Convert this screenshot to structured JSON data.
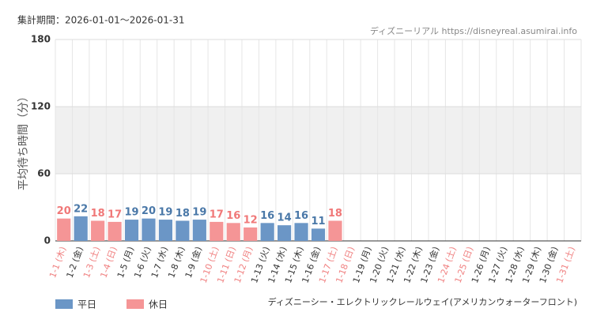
{
  "chart_data": {
    "type": "bar",
    "period": "集計期間：2026-01-01～2026-01-31",
    "credit": "ディズニーリアル https://disneyreal.asumirai.info",
    "ylabel": "平均待ち時間（分）",
    "caption": "ディズニーシー・エレクトリックレールウェイ(アメリカンウォーターフロント)",
    "categories": [
      "1-1 (木)",
      "1-2 (金)",
      "1-3 (土)",
      "1-4 (日)",
      "1-5 (月)",
      "1-6 (火)",
      "1-7 (水)",
      "1-8 (木)",
      "1-9 (金)",
      "1-10 (土)",
      "1-11 (日)",
      "1-12 (月)",
      "1-13 (火)",
      "1-14 (水)",
      "1-15 (木)",
      "1-16 (金)",
      "1-17 (土)",
      "1-18 (日)",
      "1-19 (月)",
      "1-20 (火)",
      "1-21 (水)",
      "1-22 (木)",
      "1-23 (金)",
      "1-24 (土)",
      "1-25 (日)",
      "1-26 (月)",
      "1-27 (火)",
      "1-28 (水)",
      "1-29 (木)",
      "1-30 (金)",
      "1-31 (土)"
    ],
    "category_colors": [
      "#f08080",
      "#333333",
      "#f08080",
      "#f08080",
      "#333333",
      "#333333",
      "#333333",
      "#333333",
      "#333333",
      "#f08080",
      "#f08080",
      "#f08080",
      "#333333",
      "#333333",
      "#333333",
      "#333333",
      "#f08080",
      "#f08080",
      "#333333",
      "#333333",
      "#333333",
      "#333333",
      "#333333",
      "#f08080",
      "#f08080",
      "#333333",
      "#333333",
      "#333333",
      "#333333",
      "#333333",
      "#f08080"
    ],
    "series": [
      {
        "name": "平日",
        "color": "#6b96c6",
        "label_color": "#4a78a8",
        "values": [
          null,
          22,
          null,
          null,
          19,
          20,
          19,
          18,
          19,
          null,
          null,
          null,
          16,
          14,
          16,
          11,
          null,
          null,
          null,
          null,
          null,
          null,
          null,
          null,
          null,
          null,
          null,
          null,
          null,
          null,
          null
        ]
      },
      {
        "name": "休日",
        "color": "#f59596",
        "label_color": "#f07878",
        "values": [
          20,
          null,
          18,
          17,
          null,
          null,
          null,
          null,
          null,
          17,
          16,
          12,
          null,
          null,
          null,
          null,
          18,
          null,
          null,
          null,
          null,
          null,
          null,
          null,
          null,
          null,
          null,
          null,
          null,
          null,
          null
        ]
      }
    ],
    "ylim": [
      0,
      180
    ],
    "yticks": [
      0,
      60,
      120,
      180
    ],
    "grid": true
  }
}
